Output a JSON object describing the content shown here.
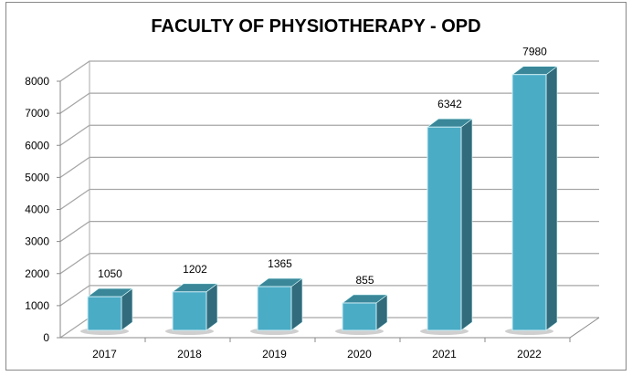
{
  "chart_data": {
    "type": "bar",
    "style": "3d-column",
    "title": "FACULTY OF PHYSIOTHERAPY - OPD",
    "categories": [
      "2017",
      "2018",
      "2019",
      "2020",
      "2021",
      "2022"
    ],
    "values": [
      1050,
      1202,
      1365,
      855,
      6342,
      7980
    ],
    "data_labels": [
      "1050",
      "1202",
      "1365",
      "855",
      "6342",
      "7980"
    ],
    "yticks": [
      "0",
      "1000",
      "2000",
      "3000",
      "4000",
      "5000",
      "6000",
      "7000",
      "8000"
    ],
    "ylim": [
      0,
      8000
    ],
    "grid": true,
    "legend": "none",
    "colors": {
      "bar_front": "#4BACC6",
      "bar_top": "#3A8799",
      "bar_side": "#316B7C",
      "grid": "#A6A6A6"
    }
  }
}
